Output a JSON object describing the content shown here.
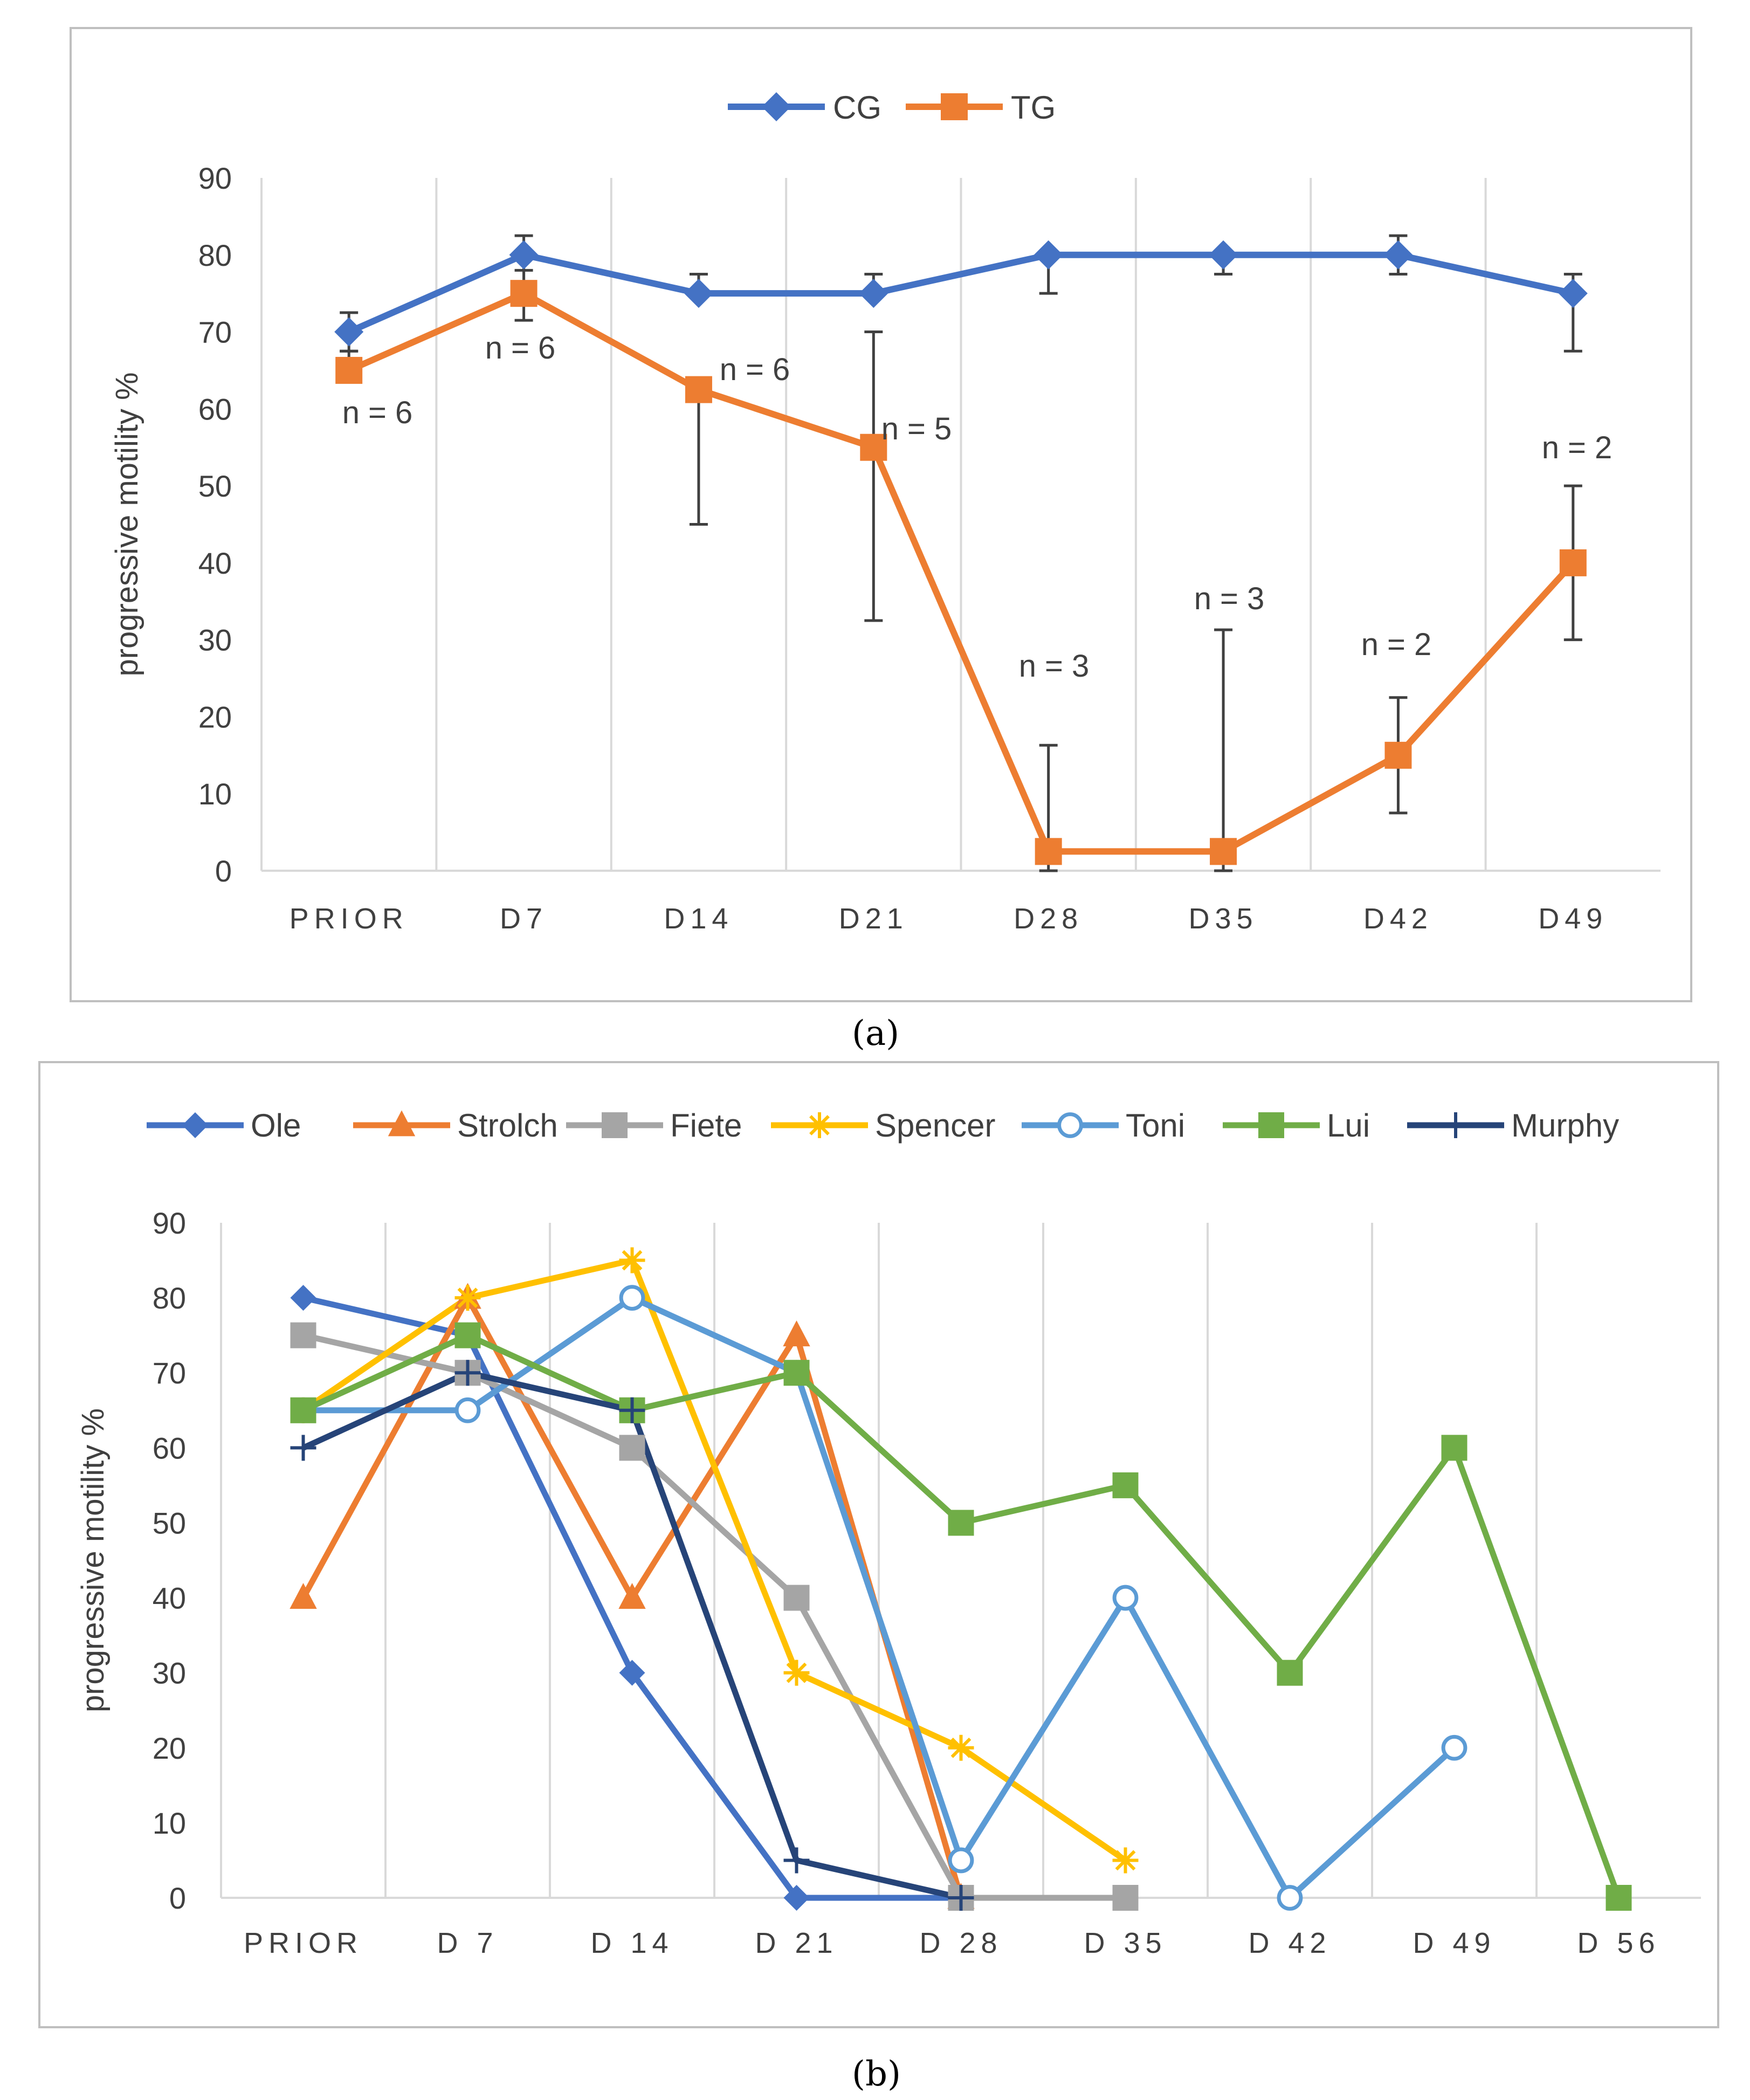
{
  "chart_data": [
    {
      "panel": "(a)",
      "type": "line",
      "ylabel": "progressive motility %",
      "ylim": [
        0,
        90
      ],
      "yticks": [
        0,
        10,
        20,
        30,
        40,
        50,
        60,
        70,
        80,
        90
      ],
      "categories": [
        "PRIOR",
        "D7",
        "D14",
        "D21",
        "D28",
        "D35",
        "D42",
        "D49"
      ],
      "series": [
        {
          "name": "CG",
          "color": "#4472C4",
          "marker": "diamond",
          "values": [
            70,
            80,
            75,
            75,
            80,
            80,
            80,
            75
          ],
          "err_low": [
            67.5,
            75,
            75,
            75,
            75,
            77.5,
            77.5,
            67.5
          ],
          "err_high": [
            72.5,
            82.5,
            77.5,
            77.5,
            80,
            80,
            82.5,
            77.5
          ]
        },
        {
          "name": "TG",
          "color": "#ED7D31",
          "marker": "square",
          "values": [
            65,
            75,
            62.5,
            55,
            2.5,
            2.5,
            15,
            40
          ],
          "err_low": [
            65,
            71.5,
            45,
            32.5,
            0,
            0,
            7.5,
            30
          ],
          "err_high": [
            67.5,
            78,
            62.5,
            70,
            16.3,
            31.3,
            22.5,
            50
          ]
        }
      ],
      "annotations": [
        "n = 6",
        "n = 6",
        "n = 6",
        "n = 5",
        "n = 3",
        "n = 3",
        "n = 2",
        "n = 2"
      ]
    },
    {
      "panel": "(b)",
      "type": "line",
      "ylabel": "progressive motility %",
      "ylim": [
        0,
        90
      ],
      "yticks": [
        0,
        10,
        20,
        30,
        40,
        50,
        60,
        70,
        80,
        90
      ],
      "categories": [
        "PRIOR",
        "D 7",
        "D 14",
        "D 21",
        "D 28",
        "D  35",
        "D 42",
        "D 49",
        "D 56"
      ],
      "series": [
        {
          "name": "Ole",
          "color": "#4472C4",
          "marker": "diamond",
          "values": [
            80,
            75,
            30,
            0,
            0,
            null,
            null,
            null,
            null
          ]
        },
        {
          "name": "Strolch",
          "color": "#ED7D31",
          "marker": "triangle",
          "values": [
            40,
            80,
            40,
            75,
            0,
            null,
            null,
            null,
            null
          ]
        },
        {
          "name": "Fiete",
          "color": "#A5A5A5",
          "marker": "square",
          "values": [
            75,
            70,
            60,
            40,
            0,
            0,
            null,
            null,
            null
          ]
        },
        {
          "name": "Spencer",
          "color": "#FFC000",
          "marker": "star",
          "values": [
            65,
            80,
            85,
            30,
            20,
            5,
            null,
            null,
            null
          ]
        },
        {
          "name": "Toni",
          "color": "#5B9BD5",
          "marker": "circle",
          "values": [
            65,
            65,
            80,
            70,
            5,
            40,
            0,
            20,
            null
          ]
        },
        {
          "name": "Lui",
          "color": "#70AD47",
          "marker": "square",
          "values": [
            65,
            75,
            65,
            70,
            50,
            55,
            30,
            60,
            0
          ]
        },
        {
          "name": "Murphy",
          "color": "#264478",
          "marker": "plus",
          "values": [
            60,
            70,
            65,
            5,
            0,
            null,
            null,
            null,
            null
          ]
        }
      ]
    }
  ]
}
